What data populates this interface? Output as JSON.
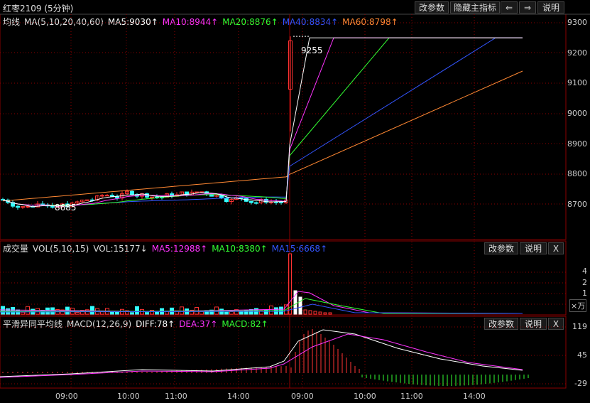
{
  "window": {
    "title": "红枣2109 (5分钟)"
  },
  "toolbar": {
    "params": "改参数",
    "hide": "隐藏主指标",
    "left": "⇐",
    "right": "⇒",
    "help": "说明"
  },
  "panel_main": {
    "name": "均线",
    "ma_label": "MA(5,10,20,40,60)",
    "items": [
      {
        "text": "MA5:9030↑",
        "color": "#ffffff"
      },
      {
        "text": "MA10:8944↑",
        "color": "#ff33ff"
      },
      {
        "text": "MA20:8876↑",
        "color": "#33ff33"
      },
      {
        "text": "MA40:8834↑",
        "color": "#3355ff"
      },
      {
        "text": "MA60:8798↑",
        "color": "#ff8833"
      }
    ],
    "high_label": "9255",
    "low_label": "8685",
    "y_ticks": [
      "9300",
      "9200",
      "9100",
      "9000",
      "8900",
      "8800",
      "8700"
    ]
  },
  "panel_vol": {
    "name": "成交量",
    "label": "VOL(5,10,15)",
    "vol": "VOL:15177↓",
    "items": [
      {
        "text": "MA5:12988↑",
        "color": "#ff33ff"
      },
      {
        "text": "MA10:8380↑",
        "color": "#33ff33"
      },
      {
        "text": "MA15:6668↑",
        "color": "#3355ff"
      }
    ],
    "params": "改参数",
    "help": "说明",
    "close": "X",
    "y_ticks": [
      "4",
      "2",
      "1"
    ],
    "unit": "×万"
  },
  "panel_macd": {
    "name": "平滑异同平均线",
    "label": "MACD(12,26,9)",
    "items": [
      {
        "text": "DIFF:78↑",
        "color": "#ffffff"
      },
      {
        "text": "DEA:37↑",
        "color": "#ff33ff"
      },
      {
        "text": "MACD:82↑",
        "color": "#33ff33"
      }
    ],
    "params": "改参数",
    "help": "说明",
    "close": "X",
    "y_ticks": [
      "119",
      "45",
      "-29"
    ]
  },
  "time_axis": [
    "09:00",
    "10:00",
    "11:00",
    "14:00",
    "09:00",
    "10:00",
    "11:00",
    "14:00"
  ],
  "chart_data": {
    "type": "line",
    "title": "红枣2109 (5分钟)",
    "series": [
      {
        "name": "MA5",
        "last": 9030
      },
      {
        "name": "MA10",
        "last": 8944
      },
      {
        "name": "MA20",
        "last": 8876
      },
      {
        "name": "MA40",
        "last": 8834
      },
      {
        "name": "MA60",
        "last": 8798
      }
    ],
    "ylim": [
      8620,
      9320
    ],
    "colors": {
      "up": "#ff3333",
      "down": "#33ffff",
      "grid": "#8b0000"
    }
  }
}
